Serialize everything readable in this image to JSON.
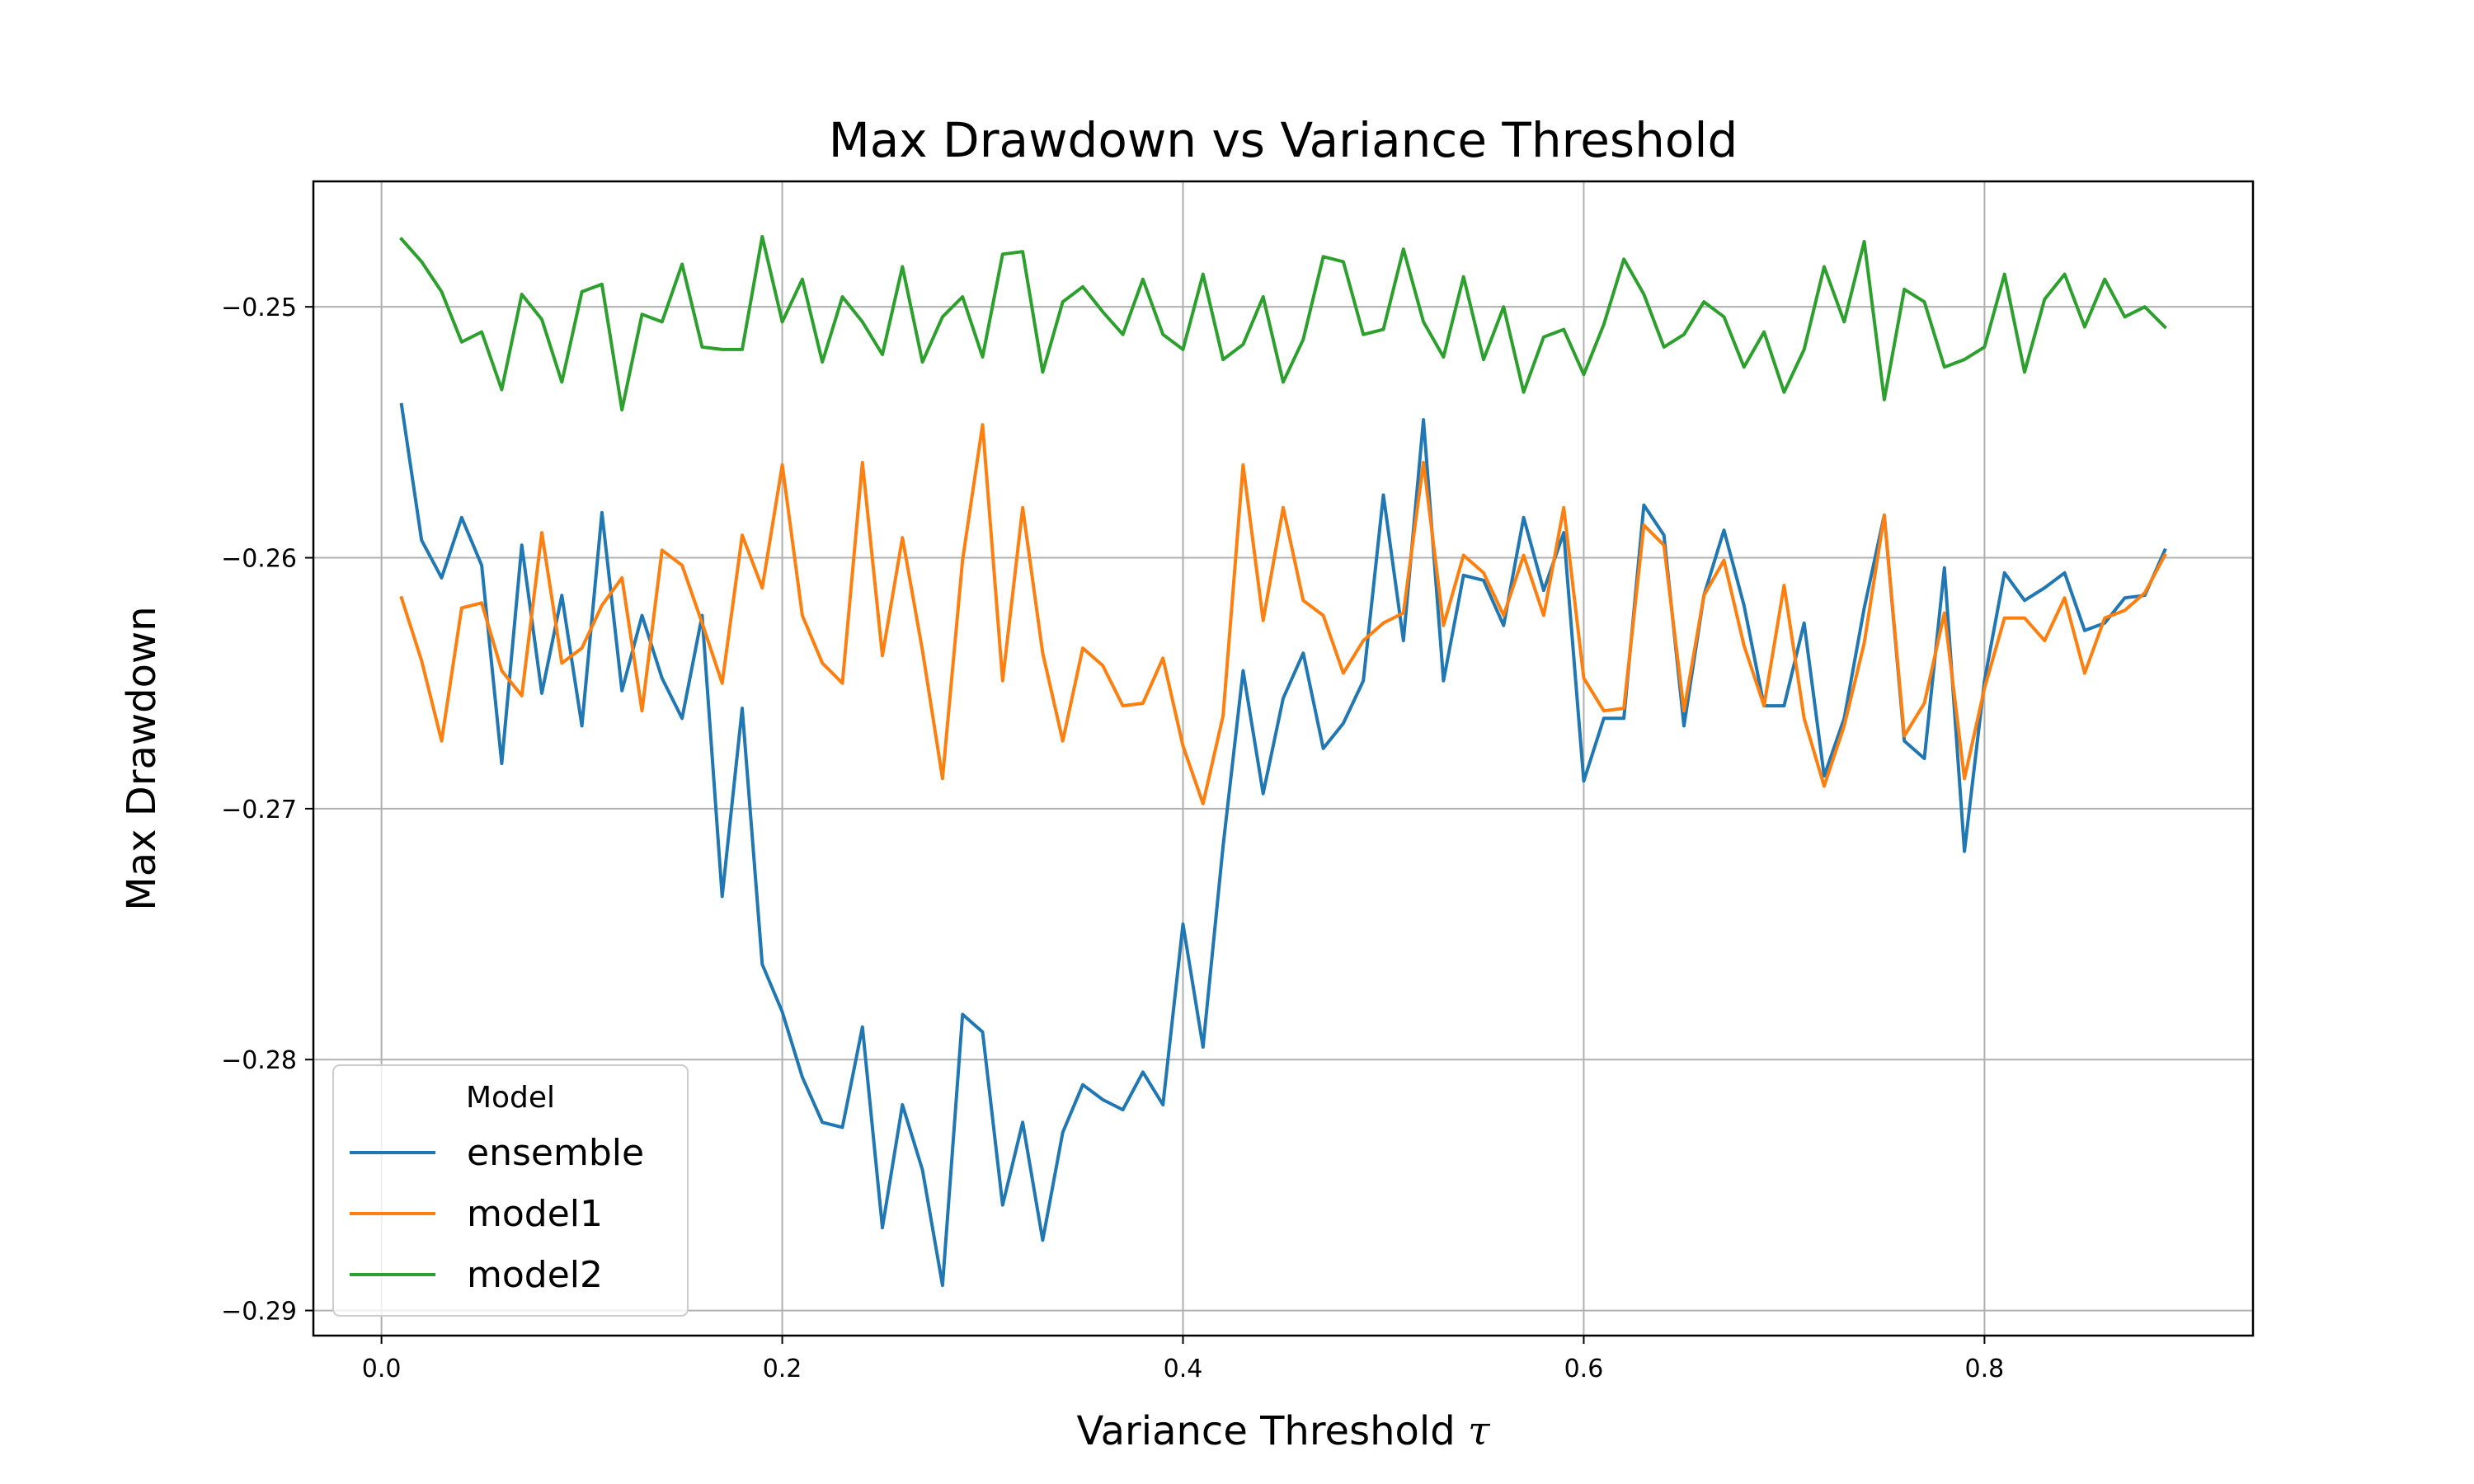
{
  "chart_data": {
    "type": "line",
    "title": "Max Drawdown vs Variance Threshold",
    "xlabel": "Variance Threshold",
    "xlabel_symbol": "τ",
    "ylabel": "Max Drawdown",
    "xlim": [
      -0.034,
      0.934
    ],
    "ylim": [
      -0.291,
      -0.245
    ],
    "xticks": [
      0.0,
      0.2,
      0.4,
      0.6,
      0.8
    ],
    "xtick_labels": [
      "0.0",
      "0.2",
      "0.4",
      "0.6",
      "0.8"
    ],
    "yticks": [
      -0.25,
      -0.26,
      -0.27,
      -0.28,
      -0.29
    ],
    "ytick_labels": [
      "−0.25",
      "−0.26",
      "−0.27",
      "−0.28",
      "−0.29"
    ],
    "grid": true,
    "legend": {
      "title": "Model",
      "position": "lower-left"
    },
    "x": [
      0.01,
      0.02,
      0.03,
      0.04,
      0.05,
      0.06,
      0.07,
      0.08,
      0.09,
      0.1,
      0.11,
      0.12,
      0.13,
      0.14,
      0.15,
      0.16,
      0.17,
      0.18,
      0.19,
      0.2,
      0.21,
      0.22,
      0.23,
      0.24,
      0.25,
      0.26,
      0.27,
      0.28,
      0.29,
      0.3,
      0.31,
      0.32,
      0.33,
      0.34,
      0.35,
      0.36,
      0.37,
      0.38,
      0.39,
      0.4,
      0.41,
      0.42,
      0.43,
      0.44,
      0.45,
      0.46,
      0.47,
      0.48,
      0.49,
      0.5,
      0.51,
      0.52,
      0.53,
      0.54,
      0.55,
      0.56,
      0.57,
      0.58,
      0.59,
      0.6,
      0.61,
      0.62,
      0.63,
      0.64,
      0.65,
      0.66,
      0.67,
      0.68,
      0.69,
      0.7,
      0.71,
      0.72,
      0.73,
      0.74,
      0.75,
      0.76,
      0.77,
      0.78,
      0.79,
      0.8,
      0.81,
      0.82,
      0.83,
      0.84,
      0.85,
      0.86,
      0.87,
      0.88,
      0.89
    ],
    "series": [
      {
        "name": "ensemble",
        "color": "#1f77b4",
        "values": [
          -0.2539,
          -0.2593,
          -0.2608,
          -0.2584,
          -0.2603,
          -0.2682,
          -0.2595,
          -0.2654,
          -0.2615,
          -0.2667,
          -0.2582,
          -0.2653,
          -0.2623,
          -0.2648,
          -0.2664,
          -0.2623,
          -0.2735,
          -0.266,
          -0.2762,
          -0.2781,
          -0.2807,
          -0.2825,
          -0.2827,
          -0.2787,
          -0.2867,
          -0.2818,
          -0.2844,
          -0.289,
          -0.2782,
          -0.2789,
          -0.2858,
          -0.2825,
          -0.2872,
          -0.2829,
          -0.281,
          -0.2816,
          -0.282,
          -0.2805,
          -0.2818,
          -0.2746,
          -0.2795,
          -0.2715,
          -0.2645,
          -0.2694,
          -0.2656,
          -0.2638,
          -0.2676,
          -0.2666,
          -0.2649,
          -0.2575,
          -0.2633,
          -0.2545,
          -0.2649,
          -0.2607,
          -0.2609,
          -0.2627,
          -0.2584,
          -0.2613,
          -0.259,
          -0.2689,
          -0.2664,
          -0.2664,
          -0.2579,
          -0.2591,
          -0.2667,
          -0.2615,
          -0.2589,
          -0.2619,
          -0.2659,
          -0.2659,
          -0.2626,
          -0.2687,
          -0.2664,
          -0.262,
          -0.2583,
          -0.2673,
          -0.268,
          -0.2604,
          -0.2717,
          -0.2649,
          -0.2606,
          -0.2617,
          -0.2612,
          -0.2606,
          -0.2629,
          -0.2626,
          -0.2616,
          -0.2615,
          -0.2597
        ]
      },
      {
        "name": "model1",
        "color": "#ff7f0e",
        "values": [
          -0.2616,
          -0.2641,
          -0.2673,
          -0.262,
          -0.2618,
          -0.2645,
          -0.2655,
          -0.259,
          -0.2642,
          -0.2636,
          -0.2619,
          -0.2608,
          -0.2661,
          -0.2597,
          -0.2603,
          -0.2626,
          -0.265,
          -0.2591,
          -0.2612,
          -0.2563,
          -0.2623,
          -0.2642,
          -0.265,
          -0.2562,
          -0.2639,
          -0.2592,
          -0.2637,
          -0.2688,
          -0.2601,
          -0.2547,
          -0.2649,
          -0.258,
          -0.2638,
          -0.2673,
          -0.2636,
          -0.2643,
          -0.2659,
          -0.2658,
          -0.264,
          -0.2675,
          -0.2698,
          -0.2663,
          -0.2563,
          -0.2625,
          -0.258,
          -0.2617,
          -0.2623,
          -0.2646,
          -0.2633,
          -0.2626,
          -0.2622,
          -0.2562,
          -0.2627,
          -0.2599,
          -0.2606,
          -0.2623,
          -0.2599,
          -0.2623,
          -0.258,
          -0.2648,
          -0.2661,
          -0.266,
          -0.2587,
          -0.2595,
          -0.2661,
          -0.2615,
          -0.2601,
          -0.2635,
          -0.2659,
          -0.2611,
          -0.2664,
          -0.2691,
          -0.2667,
          -0.2634,
          -0.2583,
          -0.2671,
          -0.2658,
          -0.2622,
          -0.2688,
          -0.2652,
          -0.2624,
          -0.2624,
          -0.2633,
          -0.2616,
          -0.2646,
          -0.2624,
          -0.2621,
          -0.2614,
          -0.2599
        ]
      },
      {
        "name": "model2",
        "color": "#2ca02c",
        "values": [
          -0.2473,
          -0.2482,
          -0.2494,
          -0.2514,
          -0.251,
          -0.2533,
          -0.2495,
          -0.2505,
          -0.253,
          -0.2494,
          -0.2491,
          -0.2541,
          -0.2503,
          -0.2506,
          -0.2483,
          -0.2516,
          -0.2517,
          -0.2517,
          -0.2472,
          -0.2506,
          -0.2489,
          -0.2522,
          -0.2496,
          -0.2506,
          -0.2519,
          -0.2484,
          -0.2522,
          -0.2504,
          -0.2496,
          -0.252,
          -0.2479,
          -0.2478,
          -0.2526,
          -0.2498,
          -0.2492,
          -0.2502,
          -0.2511,
          -0.2489,
          -0.2511,
          -0.2517,
          -0.2487,
          -0.2521,
          -0.2515,
          -0.2496,
          -0.253,
          -0.2513,
          -0.248,
          -0.2482,
          -0.2511,
          -0.2509,
          -0.2477,
          -0.2506,
          -0.252,
          -0.2488,
          -0.2521,
          -0.25,
          -0.2534,
          -0.2512,
          -0.2509,
          -0.2527,
          -0.2507,
          -0.2481,
          -0.2495,
          -0.2516,
          -0.2511,
          -0.2498,
          -0.2504,
          -0.2524,
          -0.251,
          -0.2534,
          -0.2517,
          -0.2484,
          -0.2506,
          -0.2474,
          -0.2537,
          -0.2493,
          -0.2498,
          -0.2524,
          -0.2521,
          -0.2516,
          -0.2487,
          -0.2526,
          -0.2497,
          -0.2487,
          -0.2508,
          -0.2489,
          -0.2504,
          -0.25,
          -0.2508
        ]
      }
    ]
  }
}
